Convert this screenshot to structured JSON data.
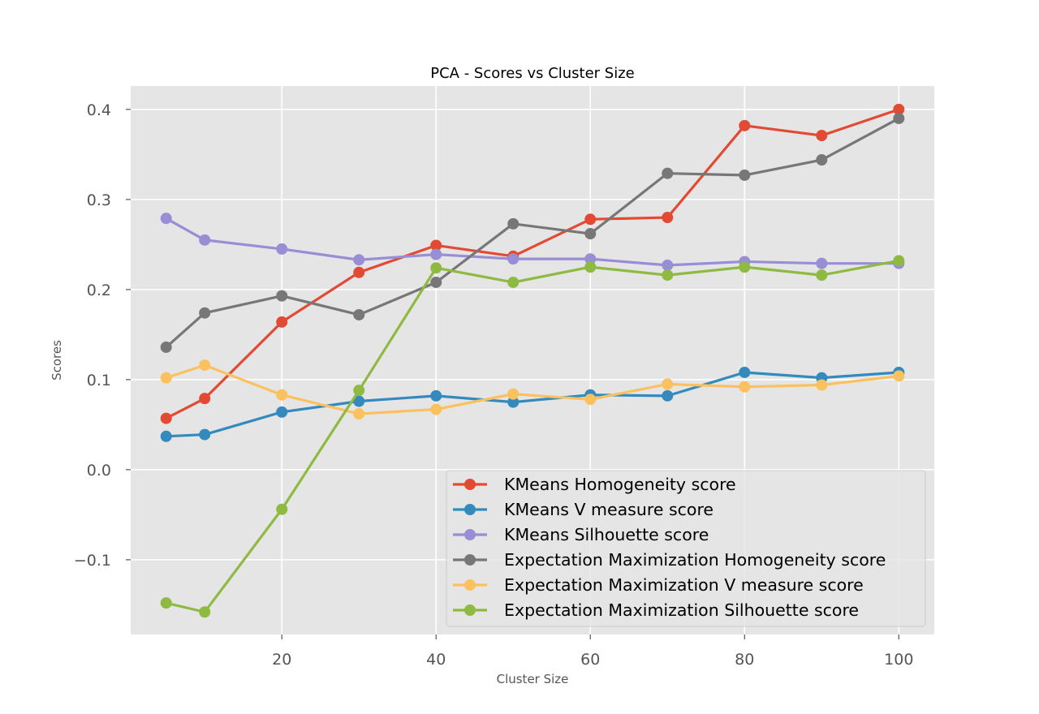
{
  "chart_data": {
    "type": "line",
    "title": "PCA - Scores vs Cluster Size",
    "xlabel": "Cluster Size",
    "ylabel": "Scores",
    "x": [
      5,
      10,
      20,
      30,
      40,
      50,
      60,
      70,
      80,
      90,
      100
    ],
    "xlim": [
      0.4,
      104.6
    ],
    "ylim": [
      -0.183,
      0.426
    ],
    "xticks": [
      20,
      40,
      60,
      80,
      100
    ],
    "xtick_labels": [
      "20",
      "40",
      "60",
      "80",
      "100"
    ],
    "yticks": [
      -0.1,
      0.0,
      0.1,
      0.2,
      0.3,
      0.4
    ],
    "ytick_labels": [
      "−0.1",
      "0.0",
      "0.1",
      "0.2",
      "0.3",
      "0.4"
    ],
    "grid": true,
    "legend_position": "lower-right",
    "background": "#e5e5e5",
    "series": [
      {
        "name": "KMeans Homogeneity score",
        "color": "#e24a33",
        "values": [
          0.057,
          0.079,
          0.164,
          0.219,
          0.249,
          0.237,
          0.278,
          0.28,
          0.382,
          0.371,
          0.4
        ]
      },
      {
        "name": "KMeans V measure score",
        "color": "#348abd",
        "values": [
          0.037,
          0.039,
          0.064,
          0.076,
          0.082,
          0.075,
          0.083,
          0.082,
          0.108,
          0.102,
          0.108
        ]
      },
      {
        "name": "KMeans Silhouette score",
        "color": "#988ed5",
        "values": [
          0.279,
          0.255,
          0.245,
          0.233,
          0.239,
          0.234,
          0.234,
          0.227,
          0.231,
          0.229,
          0.229
        ]
      },
      {
        "name": "Expectation Maximization Homogeneity score",
        "color": "#777777",
        "values": [
          0.136,
          0.174,
          0.193,
          0.172,
          0.208,
          0.273,
          0.262,
          0.329,
          0.327,
          0.344,
          0.39
        ]
      },
      {
        "name": "Expectation Maximization V measure score",
        "color": "#fbc15e",
        "values": [
          0.102,
          0.116,
          0.083,
          0.062,
          0.067,
          0.084,
          0.078,
          0.095,
          0.092,
          0.094,
          0.104
        ]
      },
      {
        "name": "Expectation Maximization Silhouette score",
        "color": "#8eba42",
        "values": [
          -0.148,
          -0.158,
          -0.044,
          0.088,
          0.224,
          0.208,
          0.225,
          0.216,
          0.225,
          0.216,
          0.232
        ]
      }
    ]
  }
}
